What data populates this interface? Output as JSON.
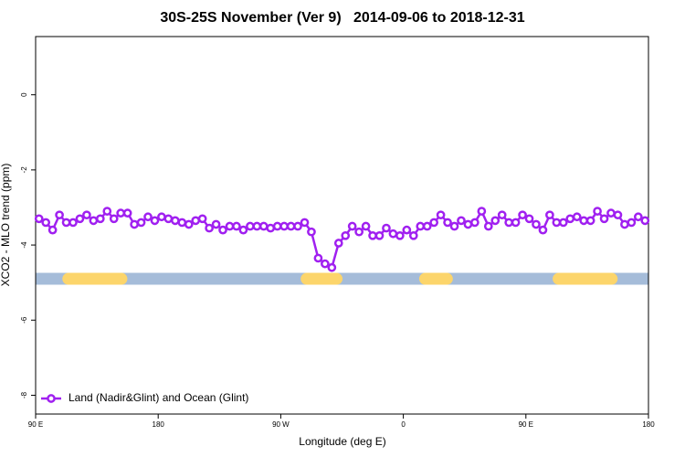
{
  "chart_data": {
    "type": "line",
    "title": "30S-25S November (Ver 9)   2014-09-06 to 2018-12-31",
    "x_label": "Longitude (deg E)",
    "y_label": "XCO2 - MLO trend (ppm)",
    "xlim": [
      90,
      540
    ],
    "ylim": [
      -8.5,
      1.55
    ],
    "xticks": [
      {
        "value": 90,
        "label": "90 E"
      },
      180,
      {
        "value": 270,
        "label": "90 W"
      },
      {
        "value": 360,
        "label": "0"
      },
      {
        "value": 450,
        "label": "90 E"
      },
      {
        "value": 540,
        "label": "180"
      }
    ],
    "yticks": [
      0,
      -2,
      -4,
      -6,
      -8
    ],
    "legend": "bottom-left",
    "x": [
      92.5,
      97.5,
      102.5,
      107.5,
      112.5,
      117.5,
      122.5,
      127.5,
      132.5,
      137.5,
      142.5,
      147.5,
      152.5,
      157.5,
      162.5,
      167.5,
      172.5,
      177.5,
      182.5,
      187.5,
      192.5,
      197.5,
      202.5,
      207.5,
      212.5,
      217.5,
      222.5,
      227.5,
      232.5,
      237.5,
      242.5,
      247.5,
      252.5,
      257.5,
      262.5,
      267.5,
      272.5,
      277.5,
      282.5,
      287.5,
      292.5,
      297.5,
      302.5,
      307.5,
      312.5,
      317.5,
      322.5,
      327.5,
      332.5,
      337.5,
      342.5,
      347.5,
      352.5,
      357.5,
      362.5,
      367.5,
      372.5,
      377.5,
      382.5,
      387.5,
      392.5,
      397.5,
      402.5,
      407.5,
      412.5,
      417.5,
      422.5,
      427.5,
      432.5,
      437.5,
      442.5,
      447.5,
      452.5,
      457.5,
      462.5,
      467.5,
      472.5,
      477.5,
      482.5,
      487.5,
      492.5,
      497.5,
      502.5,
      507.5,
      512.5,
      517.5,
      522.5,
      527.5,
      532.5,
      537.5
    ],
    "series": [
      {
        "name": "Land (Nadir&Glint) and Ocean (Glint)",
        "color": "#a020f0",
        "values": [
          -3.3,
          -3.4,
          -3.6,
          -3.2,
          -3.4,
          -3.4,
          -3.3,
          -3.2,
          -3.35,
          -3.3,
          -3.1,
          -3.3,
          -3.15,
          -3.15,
          -3.45,
          -3.4,
          -3.25,
          -3.35,
          -3.25,
          -3.3,
          -3.35,
          -3.4,
          -3.45,
          -3.35,
          -3.3,
          -3.55,
          -3.45,
          -3.6,
          -3.5,
          -3.5,
          -3.6,
          -3.5,
          -3.5,
          -3.5,
          -3.55,
          -3.5,
          -3.5,
          -3.5,
          -3.5,
          -3.4,
          -3.65,
          -4.35,
          -4.5,
          -4.6,
          -3.95,
          -3.75,
          -3.5,
          -3.65,
          -3.5,
          -3.75,
          -3.75,
          -3.55,
          -3.7,
          -3.75,
          -3.6,
          -3.75,
          -3.5,
          -3.5,
          -3.4,
          -3.2,
          -3.4,
          -3.5,
          -3.35,
          -3.45,
          -3.4,
          -3.1,
          -3.5,
          -3.35,
          -3.2,
          -3.4,
          -3.4,
          -3.2,
          -3.3,
          -3.45,
          -3.6,
          -3.2,
          -3.4,
          -3.4,
          -3.3,
          -3.25,
          -3.35,
          -3.35,
          -3.1,
          -3.3,
          -3.15,
          -3.2,
          -3.45,
          -3.4,
          -3.25,
          -3.35
        ]
      }
    ],
    "surface_band": {
      "value": -4.9,
      "ocean_color": "#a5bcd9",
      "land_color": "#fcd56b",
      "land": [
        [
          114,
          153
        ],
        [
          289,
          311
        ],
        [
          376,
          392
        ],
        [
          474,
          513
        ]
      ]
    }
  }
}
